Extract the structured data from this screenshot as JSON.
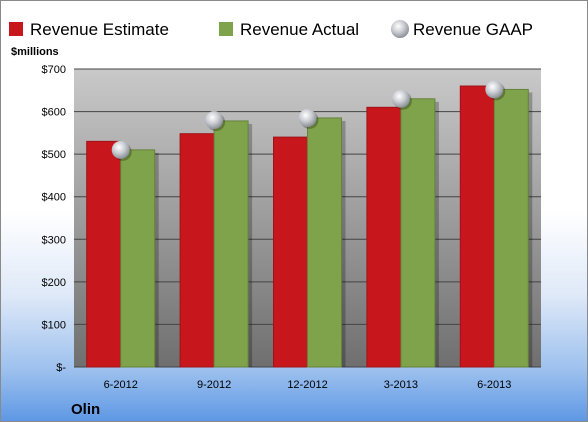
{
  "chart_data": {
    "type": "bar",
    "company": "Olin",
    "unit_label": "$millions",
    "categories": [
      "6-2012",
      "9-2012",
      "12-2012",
      "3-2013",
      "6-2013"
    ],
    "series": [
      {
        "name": "Revenue Estimate",
        "kind": "bar",
        "color": "#c8161d",
        "values": [
          530,
          548,
          540,
          610,
          660
        ]
      },
      {
        "name": "Revenue Actual",
        "kind": "bar",
        "color": "#7fa34a",
        "values": [
          510,
          578,
          585,
          630,
          652
        ]
      },
      {
        "name": "Revenue GAAP",
        "kind": "marker",
        "color": "#c0c4cc",
        "values": [
          510,
          580,
          585,
          630,
          652
        ]
      }
    ],
    "y_ticks": [
      {
        "value": 0,
        "label": "$-"
      },
      {
        "value": 100,
        "label": "$100"
      },
      {
        "value": 200,
        "label": "$200"
      },
      {
        "value": 300,
        "label": "$300"
      },
      {
        "value": 400,
        "label": "$400"
      },
      {
        "value": 500,
        "label": "$500"
      },
      {
        "value": 600,
        "label": "$600"
      },
      {
        "value": 700,
        "label": "$700"
      }
    ],
    "ylim": [
      0,
      700
    ],
    "grid": true,
    "legend_position": "top"
  }
}
